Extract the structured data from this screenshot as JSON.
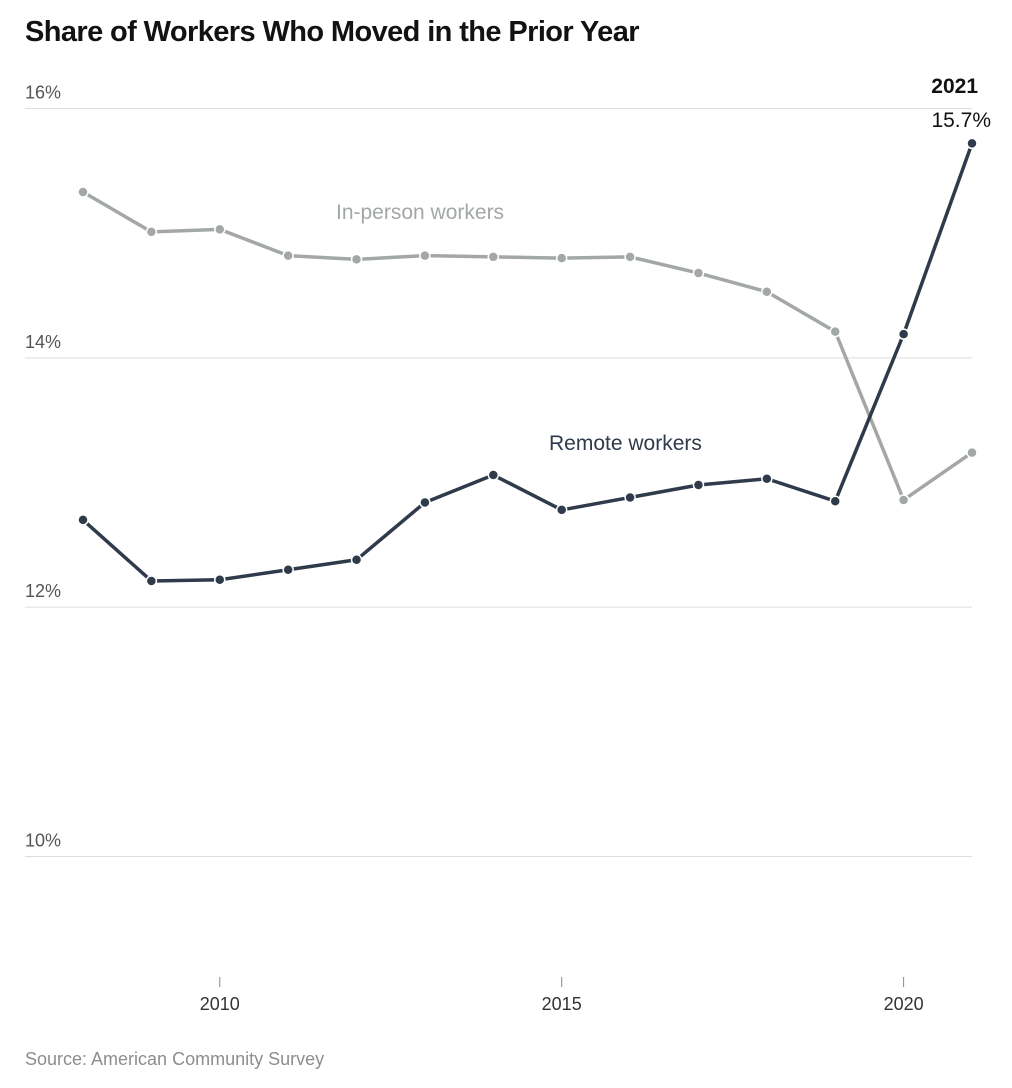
{
  "chart_data": {
    "type": "line",
    "title": "Share of Workers Who Moved in the Prior Year",
    "source": "Source: American Community Survey",
    "x": [
      2008,
      2009,
      2010,
      2011,
      2012,
      2013,
      2014,
      2015,
      2016,
      2017,
      2018,
      2019,
      2020,
      2021
    ],
    "xticks": [
      2010,
      2015,
      2020
    ],
    "xlim": [
      2008,
      2021
    ],
    "ylim": [
      9,
      16
    ],
    "yticks": [
      {
        "value": 16,
        "label": "16%"
      },
      {
        "value": 14,
        "label": "14%"
      },
      {
        "value": 12,
        "label": "12%"
      },
      {
        "value": 10,
        "label": "10%"
      }
    ],
    "grid": true,
    "series": [
      {
        "name": "In-person workers",
        "color": "#a3a8a5",
        "values": [
          15.33,
          15.01,
          15.03,
          14.82,
          14.79,
          14.82,
          14.81,
          14.8,
          14.81,
          14.68,
          14.53,
          14.21,
          12.86,
          13.24
        ]
      },
      {
        "name": "Remote workers",
        "color": "#2f3a4b",
        "values": [
          12.7,
          12.21,
          12.22,
          12.3,
          12.38,
          12.84,
          13.06,
          12.78,
          12.88,
          12.98,
          13.03,
          12.85,
          14.19,
          15.72
        ]
      }
    ],
    "annotation": {
      "year_label": "2021",
      "value_label": "15.7%"
    }
  }
}
